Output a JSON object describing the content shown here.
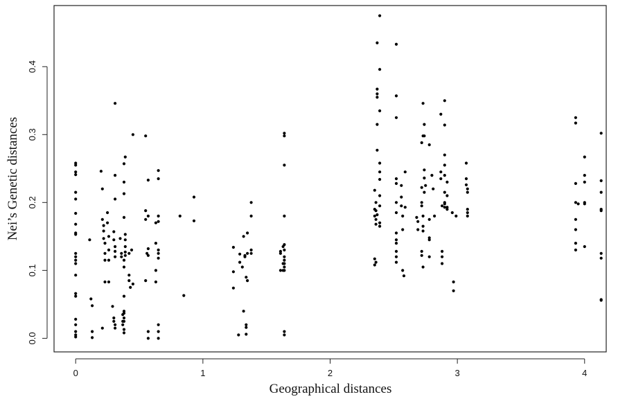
{
  "chart_data": {
    "type": "scatter",
    "title": "",
    "xlabel": "Geographical distances",
    "ylabel": "Nei’s Genetic distances",
    "xlim": [
      -0.17,
      4.17
    ],
    "ylim": [
      -0.02,
      0.49
    ],
    "x_ticks": [
      0,
      1,
      2,
      3,
      4
    ],
    "x_tick_labels": [
      "0",
      "1",
      "2",
      "3",
      "4"
    ],
    "y_ticks": [
      0.0,
      0.1,
      0.2,
      0.3,
      0.4
    ],
    "y_tick_labels": [
      "0.0",
      "0.1",
      "0.2",
      "0.3",
      "0.4"
    ],
    "grid": false,
    "point_color": "#000000",
    "points": [
      [
        0,
        0.258
      ],
      [
        0,
        0.255
      ],
      [
        0,
        0.245
      ],
      [
        0,
        0.241
      ],
      [
        0,
        0.215
      ],
      [
        0,
        0.205
      ],
      [
        0,
        0.184
      ],
      [
        0,
        0.168
      ],
      [
        0,
        0.155
      ],
      [
        0,
        0.153
      ],
      [
        0,
        0.125
      ],
      [
        0,
        0.12
      ],
      [
        0,
        0.115
      ],
      [
        0,
        0.11
      ],
      [
        0,
        0.093
      ],
      [
        0,
        0.066
      ],
      [
        0,
        0.062
      ],
      [
        0,
        0.028
      ],
      [
        0,
        0.02
      ],
      [
        0,
        0.01
      ],
      [
        0,
        0.005
      ],
      [
        0,
        0.002
      ],
      [
        0.11,
        0.145
      ],
      [
        0.12,
        0.058
      ],
      [
        0.13,
        0.048
      ],
      [
        0.13,
        0.01
      ],
      [
        0.13,
        0.001
      ],
      [
        0.2,
        0.246
      ],
      [
        0.21,
        0.22
      ],
      [
        0.21,
        0.175
      ],
      [
        0.22,
        0.166
      ],
      [
        0.22,
        0.158
      ],
      [
        0.22,
        0.147
      ],
      [
        0.23,
        0.14
      ],
      [
        0.23,
        0.125
      ],
      [
        0.23,
        0.115
      ],
      [
        0.23,
        0.083
      ],
      [
        0.21,
        0.015
      ],
      [
        0.25,
        0.185
      ],
      [
        0.25,
        0.17
      ],
      [
        0.26,
        0.15
      ],
      [
        0.26,
        0.13
      ],
      [
        0.26,
        0.115
      ],
      [
        0.26,
        0.083
      ],
      [
        0.31,
        0.346
      ],
      [
        0.31,
        0.24
      ],
      [
        0.31,
        0.205
      ],
      [
        0.3,
        0.157
      ],
      [
        0.3,
        0.145
      ],
      [
        0.31,
        0.135
      ],
      [
        0.31,
        0.128
      ],
      [
        0.31,
        0.12
      ],
      [
        0.29,
        0.047
      ],
      [
        0.3,
        0.03
      ],
      [
        0.3,
        0.025
      ],
      [
        0.31,
        0.02
      ],
      [
        0.31,
        0.015
      ],
      [
        0.35,
        0.147
      ],
      [
        0.36,
        0.125
      ],
      [
        0.36,
        0.12
      ],
      [
        0.37,
        0.035
      ],
      [
        0.37,
        0.025
      ],
      [
        0.37,
        0.02
      ],
      [
        0.39,
        0.267
      ],
      [
        0.38,
        0.257
      ],
      [
        0.38,
        0.23
      ],
      [
        0.38,
        0.213
      ],
      [
        0.38,
        0.178
      ],
      [
        0.39,
        0.153
      ],
      [
        0.39,
        0.145
      ],
      [
        0.39,
        0.135
      ],
      [
        0.39,
        0.127
      ],
      [
        0.39,
        0.122
      ],
      [
        0.38,
        0.115
      ],
      [
        0.38,
        0.105
      ],
      [
        0.38,
        0.062
      ],
      [
        0.38,
        0.04
      ],
      [
        0.38,
        0.037
      ],
      [
        0.38,
        0.03
      ],
      [
        0.38,
        0.025
      ],
      [
        0.38,
        0.013
      ],
      [
        0.38,
        0.008
      ],
      [
        0.42,
        0.125
      ],
      [
        0.42,
        0.093
      ],
      [
        0.42,
        0.085
      ],
      [
        0.43,
        0.075
      ],
      [
        0.44,
        0.13
      ],
      [
        0.45,
        0.3
      ],
      [
        0.45,
        0.08
      ],
      [
        0.55,
        0.298
      ],
      [
        0.55,
        0.188
      ],
      [
        0.55,
        0.175
      ],
      [
        0.55,
        0.085
      ],
      [
        0.56,
        0.125
      ],
      [
        0.57,
        0.233
      ],
      [
        0.57,
        0.18
      ],
      [
        0.57,
        0.132
      ],
      [
        0.57,
        0.122
      ],
      [
        0.57,
        0.01
      ],
      [
        0.57,
        0.0
      ],
      [
        0.63,
        0.17
      ],
      [
        0.63,
        0.14
      ],
      [
        0.63,
        0.1
      ],
      [
        0.63,
        0.083
      ],
      [
        0.65,
        0.247
      ],
      [
        0.65,
        0.235
      ],
      [
        0.65,
        0.18
      ],
      [
        0.65,
        0.172
      ],
      [
        0.65,
        0.13
      ],
      [
        0.65,
        0.125
      ],
      [
        0.65,
        0.118
      ],
      [
        0.65,
        0.02
      ],
      [
        0.65,
        0.01
      ],
      [
        0.65,
        0.0
      ],
      [
        0.82,
        0.18
      ],
      [
        0.85,
        0.063
      ],
      [
        0.93,
        0.208
      ],
      [
        0.93,
        0.173
      ],
      [
        1.24,
        0.134
      ],
      [
        1.24,
        0.098
      ],
      [
        1.24,
        0.074
      ],
      [
        1.28,
        0.005
      ],
      [
        1.29,
        0.112
      ],
      [
        1.29,
        0.124
      ],
      [
        1.31,
        0.105
      ],
      [
        1.32,
        0.04
      ],
      [
        1.32,
        0.15
      ],
      [
        1.33,
        0.122
      ],
      [
        1.33,
        0.12
      ],
      [
        1.34,
        0.09
      ],
      [
        1.34,
        0.016
      ],
      [
        1.34,
        0.02
      ],
      [
        1.34,
        0.006
      ],
      [
        1.35,
        0.155
      ],
      [
        1.35,
        0.125
      ],
      [
        1.35,
        0.085
      ],
      [
        1.38,
        0.2
      ],
      [
        1.38,
        0.18
      ],
      [
        1.38,
        0.13
      ],
      [
        1.38,
        0.125
      ],
      [
        1.61,
        0.128
      ],
      [
        1.61,
        0.125
      ],
      [
        1.61,
        0.1
      ],
      [
        1.63,
        0.135
      ],
      [
        1.63,
        0.11
      ],
      [
        1.63,
        0.1
      ],
      [
        1.64,
        0.302
      ],
      [
        1.64,
        0.298
      ],
      [
        1.64,
        0.255
      ],
      [
        1.64,
        0.18
      ],
      [
        1.64,
        0.138
      ],
      [
        1.64,
        0.13
      ],
      [
        1.64,
        0.12
      ],
      [
        1.64,
        0.115
      ],
      [
        1.64,
        0.11
      ],
      [
        1.64,
        0.105
      ],
      [
        1.64,
        0.1
      ],
      [
        1.64,
        0.01
      ],
      [
        1.64,
        0.005
      ],
      [
        2.35,
        0.218
      ],
      [
        2.35,
        0.19
      ],
      [
        2.35,
        0.18
      ],
      [
        2.35,
        0.117
      ],
      [
        2.35,
        0.108
      ],
      [
        2.36,
        0.2
      ],
      [
        2.36,
        0.188
      ],
      [
        2.36,
        0.175
      ],
      [
        2.36,
        0.168
      ],
      [
        2.36,
        0.112
      ],
      [
        2.37,
        0.367
      ],
      [
        2.37,
        0.36
      ],
      [
        2.37,
        0.355
      ],
      [
        2.37,
        0.315
      ],
      [
        2.37,
        0.277
      ],
      [
        2.37,
        0.182
      ],
      [
        2.37,
        0.435
      ],
      [
        2.39,
        0.475
      ],
      [
        2.39,
        0.396
      ],
      [
        2.39,
        0.335
      ],
      [
        2.39,
        0.258
      ],
      [
        2.39,
        0.245
      ],
      [
        2.39,
        0.234
      ],
      [
        2.39,
        0.21
      ],
      [
        2.39,
        0.195
      ],
      [
        2.39,
        0.17
      ],
      [
        2.39,
        0.165
      ],
      [
        2.52,
        0.433
      ],
      [
        2.52,
        0.357
      ],
      [
        2.52,
        0.325
      ],
      [
        2.52,
        0.235
      ],
      [
        2.52,
        0.228
      ],
      [
        2.52,
        0.2
      ],
      [
        2.52,
        0.185
      ],
      [
        2.52,
        0.155
      ],
      [
        2.52,
        0.145
      ],
      [
        2.52,
        0.14
      ],
      [
        2.52,
        0.128
      ],
      [
        2.52,
        0.12
      ],
      [
        2.52,
        0.112
      ],
      [
        2.56,
        0.225
      ],
      [
        2.56,
        0.208
      ],
      [
        2.56,
        0.195
      ],
      [
        2.57,
        0.18
      ],
      [
        2.57,
        0.16
      ],
      [
        2.57,
        0.1
      ],
      [
        2.58,
        0.092
      ],
      [
        2.59,
        0.193
      ],
      [
        2.59,
        0.245
      ],
      [
        2.68,
        0.178
      ],
      [
        2.69,
        0.172
      ],
      [
        2.69,
        0.16
      ],
      [
        2.72,
        0.288
      ],
      [
        2.72,
        0.222
      ],
      [
        2.72,
        0.2
      ],
      [
        2.72,
        0.195
      ],
      [
        2.72,
        0.128
      ],
      [
        2.72,
        0.122
      ],
      [
        2.73,
        0.346
      ],
      [
        2.73,
        0.298
      ],
      [
        2.73,
        0.18
      ],
      [
        2.73,
        0.165
      ],
      [
        2.73,
        0.158
      ],
      [
        2.73,
        0.105
      ],
      [
        2.74,
        0.315
      ],
      [
        2.74,
        0.298
      ],
      [
        2.74,
        0.248
      ],
      [
        2.74,
        0.236
      ],
      [
        2.74,
        0.215
      ],
      [
        2.75,
        0.225
      ],
      [
        2.78,
        0.285
      ],
      [
        2.78,
        0.175
      ],
      [
        2.78,
        0.148
      ],
      [
        2.78,
        0.145
      ],
      [
        2.78,
        0.12
      ],
      [
        2.8,
        0.24
      ],
      [
        2.81,
        0.22
      ],
      [
        2.82,
        0.18
      ],
      [
        2.87,
        0.33
      ],
      [
        2.87,
        0.245
      ],
      [
        2.87,
        0.235
      ],
      [
        2.88,
        0.195
      ],
      [
        2.88,
        0.128
      ],
      [
        2.88,
        0.12
      ],
      [
        2.88,
        0.11
      ],
      [
        2.9,
        0.35
      ],
      [
        2.9,
        0.314
      ],
      [
        2.9,
        0.27
      ],
      [
        2.9,
        0.255
      ],
      [
        2.9,
        0.24
      ],
      [
        2.9,
        0.215
      ],
      [
        2.9,
        0.2
      ],
      [
        2.9,
        0.198
      ],
      [
        2.9,
        0.193
      ],
      [
        2.92,
        0.23
      ],
      [
        2.92,
        0.21
      ],
      [
        2.92,
        0.193
      ],
      [
        2.92,
        0.19
      ],
      [
        2.96,
        0.185
      ],
      [
        2.97,
        0.083
      ],
      [
        2.97,
        0.07
      ],
      [
        2.99,
        0.18
      ],
      [
        3.07,
        0.258
      ],
      [
        3.07,
        0.235
      ],
      [
        3.07,
        0.226
      ],
      [
        3.08,
        0.22
      ],
      [
        3.08,
        0.215
      ],
      [
        3.08,
        0.19
      ],
      [
        3.08,
        0.185
      ],
      [
        3.08,
        0.18
      ],
      [
        3.93,
        0.325
      ],
      [
        3.93,
        0.317
      ],
      [
        3.93,
        0.228
      ],
      [
        3.93,
        0.2
      ],
      [
        3.93,
        0.175
      ],
      [
        3.93,
        0.16
      ],
      [
        3.93,
        0.14
      ],
      [
        3.93,
        0.13
      ],
      [
        3.95,
        0.198
      ],
      [
        4.0,
        0.267
      ],
      [
        4.0,
        0.24
      ],
      [
        4.0,
        0.23
      ],
      [
        4.0,
        0.2
      ],
      [
        4.0,
        0.198
      ],
      [
        4.0,
        0.135
      ],
      [
        4.13,
        0.302
      ],
      [
        4.13,
        0.232
      ],
      [
        4.13,
        0.215
      ],
      [
        4.13,
        0.19
      ],
      [
        4.13,
        0.188
      ],
      [
        4.13,
        0.125
      ],
      [
        4.13,
        0.118
      ],
      [
        4.13,
        0.057
      ],
      [
        4.13,
        0.056
      ]
    ]
  }
}
